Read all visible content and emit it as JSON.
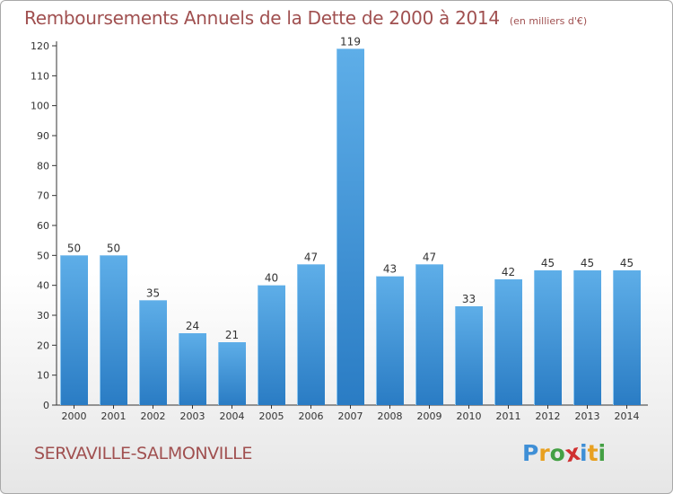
{
  "header": {
    "title": "Remboursements Annuels de la Dette de 2000 à 2014",
    "subtitle": "(en milliers d'€)"
  },
  "footer": {
    "commune": "SERVAVILLE-SALMONVILLE",
    "logo_letters": [
      "P",
      "r",
      "o",
      "x",
      "i",
      "t",
      "i"
    ],
    "logo_colors": [
      "#3f8fd6",
      "#e8a020",
      "#44a044",
      "#d03030",
      "#3f8fd6",
      "#e8a020",
      "#44a044"
    ]
  },
  "colors": {
    "bar_light": "#5eaee8",
    "bar_dark": "#2a7cc4",
    "text_red": "#a05050",
    "axis": "#333333"
  },
  "chart_data": {
    "type": "bar",
    "title": "Remboursements Annuels de la Dette de 2000 à 2014",
    "subtitle": "(en milliers d'€)",
    "categories": [
      "2000",
      "2001",
      "2002",
      "2003",
      "2004",
      "2005",
      "2006",
      "2007",
      "2008",
      "2009",
      "2010",
      "2011",
      "2012",
      "2013",
      "2014"
    ],
    "values": [
      50,
      50,
      35,
      24,
      21,
      40,
      47,
      119,
      43,
      47,
      33,
      42,
      45,
      45,
      45
    ],
    "ylim": [
      0,
      120
    ],
    "yticks": [
      0,
      10,
      20,
      30,
      40,
      50,
      60,
      70,
      80,
      90,
      100,
      110,
      120
    ],
    "xlabel": "",
    "ylabel": "",
    "grid": false,
    "data_labels": true
  }
}
